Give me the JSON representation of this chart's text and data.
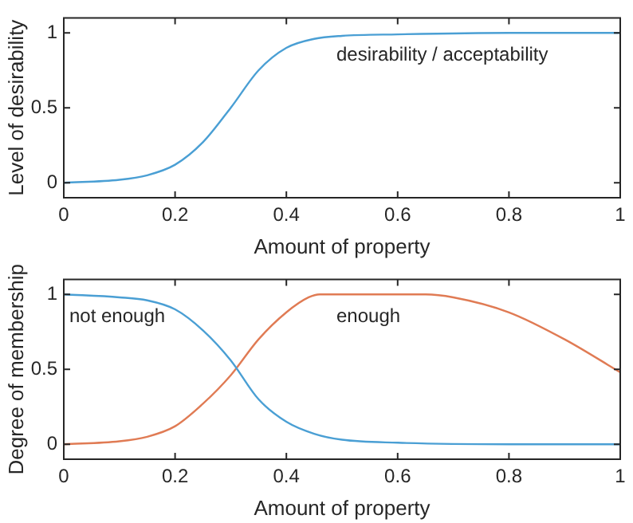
{
  "chart_data": [
    {
      "type": "line",
      "xlabel": "Amount of property",
      "ylabel": "Level of desirability",
      "xlim": [
        0,
        1
      ],
      "xticks": [
        0,
        0.2,
        0.4,
        0.6,
        0.8,
        1
      ],
      "ylim": [
        -0.1,
        1.1
      ],
      "yticks": [
        0,
        0.5,
        1
      ],
      "grid": false,
      "legend": false,
      "marker": "none",
      "line_style": "solid",
      "series": [
        {
          "name": "desirability / acceptability",
          "color": "#4a9fd4",
          "x": [
            0,
            0.1,
            0.15,
            0.2,
            0.25,
            0.3,
            0.35,
            0.4,
            0.45,
            0.5,
            0.6,
            0.8,
            1
          ],
          "values": [
            0,
            0.02,
            0.05,
            0.12,
            0.27,
            0.5,
            0.75,
            0.9,
            0.96,
            0.98,
            0.99,
            1,
            1
          ]
        }
      ]
    },
    {
      "type": "line",
      "xlabel": "Amount of property",
      "ylabel": "Degree of membership",
      "xlim": [
        0,
        1
      ],
      "xticks": [
        0,
        0.2,
        0.4,
        0.6,
        0.8,
        1
      ],
      "ylim": [
        -0.1,
        1.1
      ],
      "yticks": [
        0,
        0.5,
        1
      ],
      "grid": false,
      "legend": false,
      "marker": "none",
      "line_style": "solid",
      "series": [
        {
          "name": "not enough",
          "color": "#4a9fd4",
          "x": [
            0,
            0.1,
            0.15,
            0.2,
            0.25,
            0.3,
            0.35,
            0.4,
            0.45,
            0.5,
            0.6,
            0.8,
            1
          ],
          "values": [
            1,
            0.98,
            0.96,
            0.9,
            0.76,
            0.56,
            0.3,
            0.15,
            0.07,
            0.03,
            0.01,
            0,
            0
          ]
        },
        {
          "name": "enough",
          "color": "#e07b54",
          "x": [
            0,
            0.1,
            0.15,
            0.2,
            0.25,
            0.3,
            0.35,
            0.4,
            0.44,
            0.46,
            0.65,
            0.7,
            0.8,
            0.9,
            1
          ],
          "values": [
            0,
            0.02,
            0.05,
            0.12,
            0.27,
            0.46,
            0.7,
            0.88,
            0.98,
            1,
            1,
            0.98,
            0.88,
            0.7,
            0.48
          ]
        }
      ]
    }
  ]
}
